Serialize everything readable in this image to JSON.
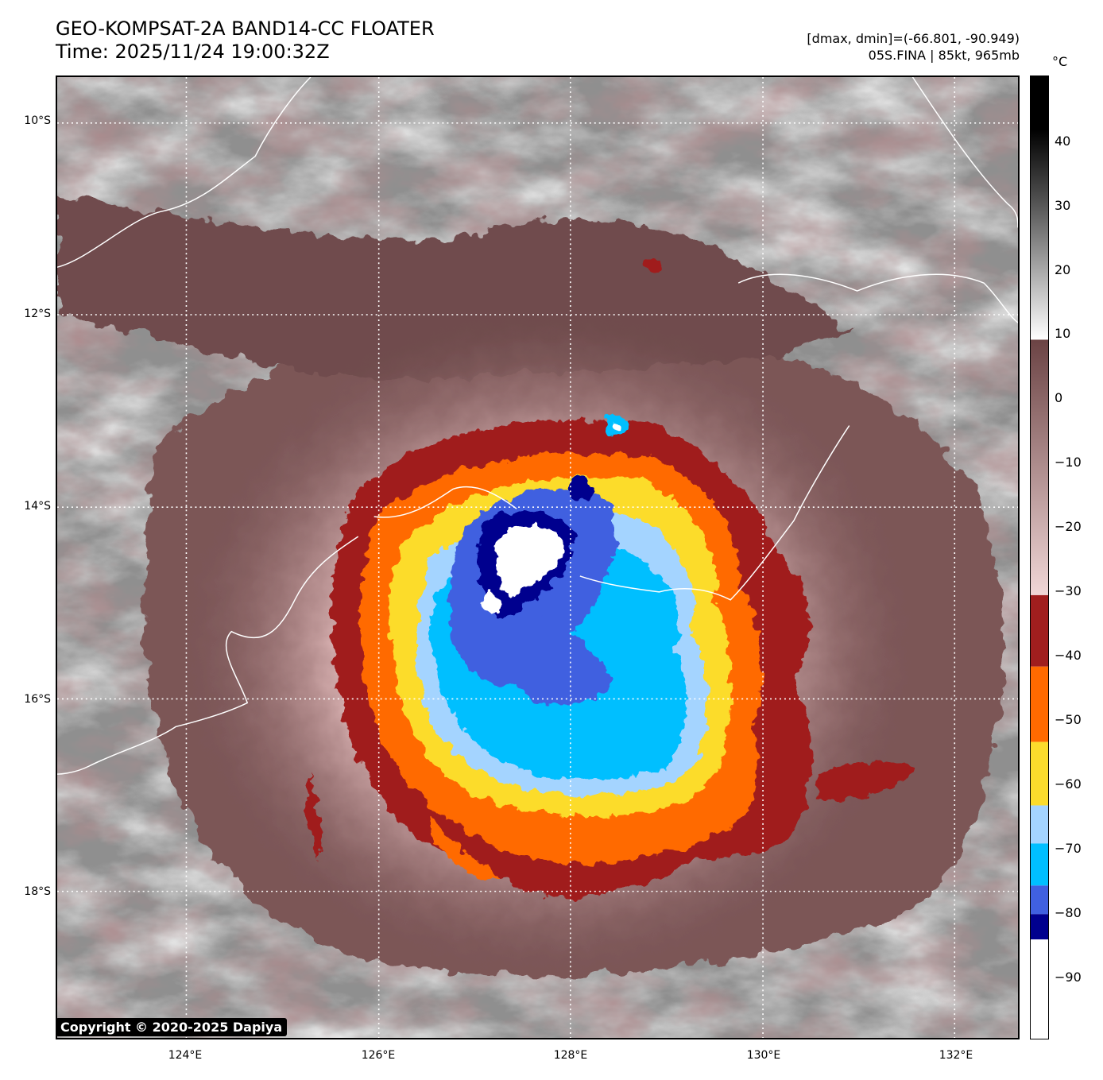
{
  "header": {
    "title_line1": "GEO-KOMPSAT-2A BAND14-CC FLOATER",
    "title_line2": "Time: 2025/11/24 19:00:32Z",
    "dminmax": "[dmax, dmin]=(-66.801, -90.949)",
    "storm": "05S.FINA | 85kt, 965mb"
  },
  "map": {
    "lat_labels": [
      "10°S",
      "12°S",
      "14°S",
      "16°S",
      "18°S"
    ],
    "lon_labels": [
      "124°E",
      "126°E",
      "128°E",
      "130°E",
      "132°E"
    ],
    "lat_values": [
      -10,
      -12,
      -14,
      -16,
      -18
    ],
    "lon_values": [
      124,
      126,
      128,
      130,
      132
    ],
    "lat_range": [
      -19.5,
      -9.5
    ],
    "lon_range": [
      122.7,
      132.7
    ],
    "grid": "dotted white",
    "copyright": "Copyright © 2020-2025 Dapiya"
  },
  "colorbar": {
    "unit": "°C",
    "range": [
      -100,
      50
    ],
    "ticks": [
      "40",
      "30",
      "20",
      "10",
      "0",
      "−10",
      "−20",
      "−30",
      "−40",
      "−50",
      "−60",
      "−70",
      "−80",
      "−90"
    ],
    "tick_values": [
      40,
      30,
      20,
      10,
      0,
      -10,
      -20,
      -30,
      -40,
      -50,
      -60,
      -70,
      -80,
      -90
    ],
    "bands": [
      {
        "from": 50,
        "to": 9,
        "color": "greyscale"
      },
      {
        "from": 9,
        "to": -31,
        "color": "#6b4344-to-#f1d7d7"
      },
      {
        "from": -31,
        "to": -42,
        "color": "#a01e1e"
      },
      {
        "from": -42,
        "to": -53.5,
        "color": "#ff6a00"
      },
      {
        "from": -53.5,
        "to": -64,
        "color": "#fcdc2c"
      },
      {
        "from": -64,
        "to": -70.5,
        "color": "#a4d4ff"
      },
      {
        "from": -70.5,
        "to": -78,
        "color": "#00bfff"
      },
      {
        "from": -78,
        "to": -82.5,
        "color": "#4060e0"
      },
      {
        "from": -82.5,
        "to": -86.5,
        "color": "#00008e"
      },
      {
        "from": -86.5,
        "to": -100,
        "color": "#ffffff"
      }
    ]
  }
}
